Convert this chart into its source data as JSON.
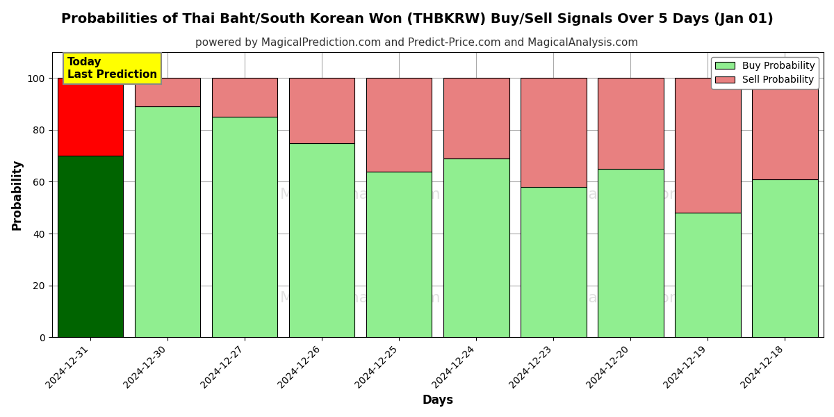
{
  "title": "Probabilities of Thai Baht/South Korean Won (THBKRW) Buy/Sell Signals Over 5 Days (Jan 01)",
  "subtitle": "powered by MagicalPrediction.com and Predict-Price.com and MagicalAnalysis.com",
  "xlabel": "Days",
  "ylabel": "Probability",
  "dates": [
    "2024-12-31",
    "2024-12-30",
    "2024-12-27",
    "2024-12-26",
    "2024-12-25",
    "2024-12-24",
    "2024-12-23",
    "2024-12-20",
    "2024-12-19",
    "2024-12-18"
  ],
  "buy_values": [
    70,
    89,
    85,
    75,
    64,
    69,
    58,
    65,
    48,
    61
  ],
  "sell_values": [
    30,
    11,
    15,
    25,
    36,
    31,
    42,
    35,
    52,
    39
  ],
  "today_bar_buy_color": "#006400",
  "today_bar_sell_color": "#FF0000",
  "other_bar_buy_color": "#90EE90",
  "other_bar_sell_color": "#E88080",
  "bar_edge_color": "#000000",
  "legend_buy_color": "#90EE90",
  "legend_sell_color": "#E88080",
  "today_label_bg": "#FFFF00",
  "today_label_text": "Today\nLast Prediction",
  "ylim": [
    0,
    110
  ],
  "yticks": [
    0,
    20,
    40,
    60,
    80,
    100
  ],
  "dashed_line_y": 110,
  "background_color": "#ffffff",
  "grid_color": "#aaaaaa",
  "title_fontsize": 14,
  "subtitle_fontsize": 11,
  "axis_label_fontsize": 12,
  "tick_fontsize": 10,
  "bar_width": 0.85
}
